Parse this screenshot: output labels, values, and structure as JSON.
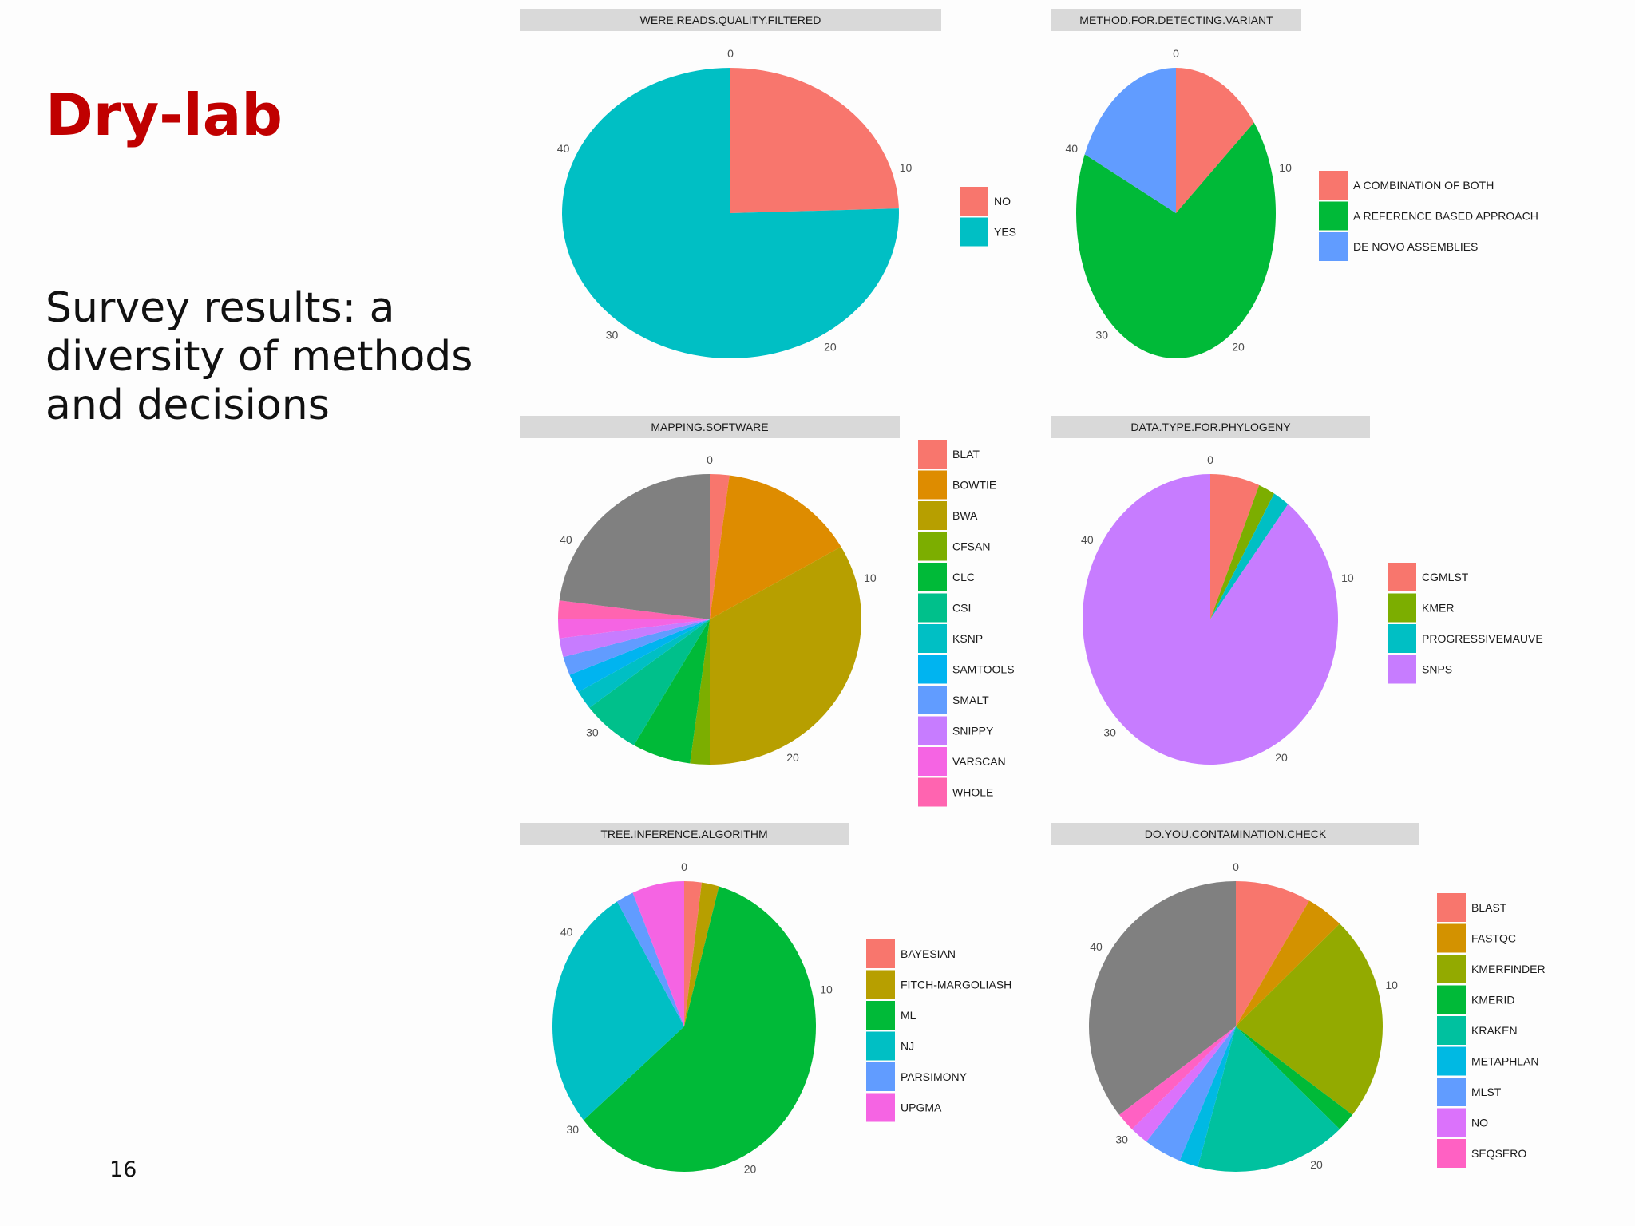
{
  "slide": {
    "title": "Dry-lab",
    "subtitle": "Survey results: a diversity of methods and decisions",
    "page_number": "16"
  },
  "chart_data": [
    {
      "type": "pie",
      "title": "WERE.READS.QUALITY.FILTERED",
      "theta_ticks": [
        "0",
        "10",
        "20",
        "30",
        "40"
      ],
      "theta_max": 49,
      "categories": [
        "NO",
        "YES"
      ],
      "values": [
        12,
        37
      ],
      "colors": [
        "#F8766D",
        "#00BFC4"
      ]
    },
    {
      "type": "pie",
      "title": "METHOD.FOR.DETECTING.VARIANT",
      "theta_ticks": [
        "0",
        "10",
        "20",
        "30",
        "40"
      ],
      "theta_max": 49,
      "categories": [
        "A COMBINATION OF BOTH",
        "A REFERENCE BASED APPROACH",
        "DE NOVO ASSEMBLIES"
      ],
      "values": [
        7,
        33,
        9
      ],
      "colors": [
        "#F8766D",
        "#00BA38",
        "#619CFF"
      ]
    },
    {
      "type": "pie",
      "title": "MAPPING.SOFTWARE",
      "theta_ticks": [
        "0",
        "10",
        "20",
        "30",
        "40"
      ],
      "theta_max": 48,
      "categories": [
        "BLAT",
        "BOWTIE",
        "BWA",
        "CFSAN",
        "CLC",
        "CSI",
        "KSNP",
        "SAMTOOLS",
        "SMALT",
        "SNIPPY",
        "VARSCAN",
        "WHOLE"
      ],
      "values": [
        1,
        7,
        16,
        1,
        3,
        3,
        1,
        1,
        1,
        1,
        1,
        1
      ],
      "extra_values": [
        11
      ],
      "colors": [
        "#F8766D",
        "#DE8C00",
        "#B79F00",
        "#7CAE00",
        "#00BA38",
        "#00C08B",
        "#00BFC4",
        "#00B4F0",
        "#619CFF",
        "#C77CFF",
        "#F564E3",
        "#FF64B0"
      ],
      "extra_colors": [
        "#808080"
      ]
    },
    {
      "type": "pie",
      "title": "DATA.TYPE.FOR.PHYLOGENY",
      "theta_ticks": [
        "0",
        "10",
        "20",
        "30",
        "40"
      ],
      "theta_max": 48,
      "categories": [
        "CGMLST",
        "KMER",
        "PROGRESSIVEMAUVE",
        "SNPS"
      ],
      "values": [
        3,
        1,
        1,
        43
      ],
      "colors": [
        "#F8766D",
        "#7CAE00",
        "#00BFC4",
        "#C77CFF"
      ]
    },
    {
      "type": "pie",
      "title": "TREE.INFERENCE.ALGORITHM",
      "theta_ticks": [
        "0",
        "10",
        "20",
        "30",
        "40"
      ],
      "theta_max": 47,
      "categories": [
        "BAYESIAN",
        "FITCH-MARGOLIASH",
        "ML",
        "NJ",
        "PARSIMONY",
        "UPGMA"
      ],
      "values": [
        1,
        1,
        28,
        13,
        1,
        3
      ],
      "colors": [
        "#F8766D",
        "#B79F00",
        "#00BA38",
        "#00BFC4",
        "#619CFF",
        "#F564E3"
      ]
    },
    {
      "type": "pie",
      "title": "DO.YOU.CONTAMINATION.CHECK",
      "theta_ticks": [
        "0",
        "10",
        "20",
        "30",
        "40"
      ],
      "theta_max": 48,
      "categories": [
        "BLAST",
        "FASTQC",
        "KMERFINDER",
        "KMERID",
        "KRAKEN",
        "METAPHLAN",
        "MLST",
        "NO",
        "SEQSERO"
      ],
      "values": [
        4,
        2,
        11,
        1,
        8,
        1,
        2,
        1,
        1
      ],
      "extra_values": [
        17
      ],
      "colors": [
        "#F8766D",
        "#D39200",
        "#93AA00",
        "#00BA38",
        "#00C19F",
        "#00B9E3",
        "#619CFF",
        "#DB72FB",
        "#FF61C3"
      ],
      "extra_colors": [
        "#808080"
      ]
    }
  ]
}
